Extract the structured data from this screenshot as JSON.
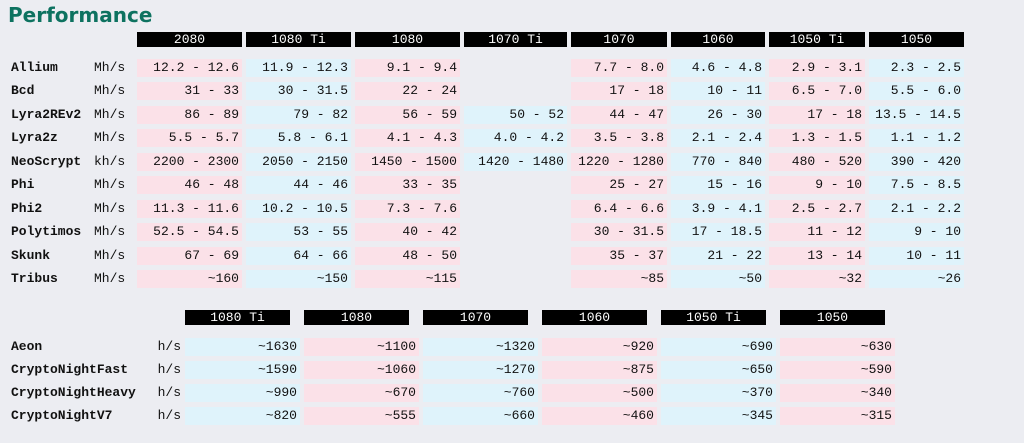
{
  "title": "Performance",
  "colors": {
    "title": "#0d7260",
    "pink": "#fbe1e8",
    "blue": "#dff3fb",
    "header_bg": "#000000"
  },
  "top_table": {
    "columns": [
      "2080",
      "1080 Ti",
      "1080",
      "1070 Ti",
      "1070",
      "1060",
      "1050 Ti",
      "1050"
    ],
    "rows": [
      {
        "algo": "Allium",
        "unit": "Mh/s",
        "values": [
          "12.2 - 12.6",
          "11.9 - 12.3",
          "9.1 - 9.4",
          "",
          "7.7 - 8.0",
          "4.6 - 4.8",
          "2.9 - 3.1",
          "2.3 - 2.5"
        ]
      },
      {
        "algo": "Bcd",
        "unit": "Mh/s",
        "values": [
          "31 - 33",
          "30 - 31.5",
          "22 - 24",
          "",
          "17 - 18",
          "10 - 11",
          "6.5 - 7.0",
          "5.5 - 6.0"
        ]
      },
      {
        "algo": "Lyra2REv2",
        "unit": "Mh/s",
        "values": [
          "86 - 89",
          "79 - 82",
          "56 - 59",
          "50 - 52",
          "44 - 47",
          "26 - 30",
          "17 - 18",
          "13.5 - 14.5"
        ]
      },
      {
        "algo": "Lyra2z",
        "unit": "Mh/s",
        "values": [
          "5.5 - 5.7",
          "5.8 - 6.1",
          "4.1 - 4.3",
          "4.0 - 4.2",
          "3.5 - 3.8",
          "2.1 - 2.4",
          "1.3 - 1.5",
          "1.1 - 1.2"
        ]
      },
      {
        "algo": "NeoScrypt",
        "unit": "kh/s",
        "values": [
          "2200 - 2300",
          "2050 - 2150",
          "1450 - 1500",
          "1420 - 1480",
          "1220 - 1280",
          "770 - 840",
          "480 - 520",
          "390 - 420"
        ]
      },
      {
        "algo": "Phi",
        "unit": "Mh/s",
        "values": [
          "46 - 48",
          "44 - 46",
          "33 - 35",
          "",
          "25 - 27",
          "15 - 16",
          "9 - 10",
          "7.5 - 8.5"
        ]
      },
      {
        "algo": "Phi2",
        "unit": "Mh/s",
        "values": [
          "11.3 - 11.6",
          "10.2 - 10.5",
          "7.3 - 7.6",
          "",
          "6.4 - 6.6",
          "3.9 - 4.1",
          "2.5 - 2.7",
          "2.1 - 2.2"
        ]
      },
      {
        "algo": "Polytimos",
        "unit": "Mh/s",
        "values": [
          "52.5 - 54.5",
          "53 - 55",
          "40 - 42",
          "",
          "30 - 31.5",
          "17 - 18.5",
          "11 - 12",
          "9 - 10"
        ]
      },
      {
        "algo": "Skunk",
        "unit": "Mh/s",
        "values": [
          "67 - 69",
          "64 - 66",
          "48 - 50",
          "",
          "35 - 37",
          "21 - 22",
          "13 - 14",
          "10 - 11"
        ]
      },
      {
        "algo": "Tribus",
        "unit": "Mh/s",
        "values": [
          "~160",
          "~150",
          "~115",
          "",
          "~85",
          "~50",
          "~32",
          "~26"
        ]
      }
    ]
  },
  "bottom_table": {
    "columns": [
      "1080 Ti",
      "1080",
      "1070",
      "1060",
      "1050 Ti",
      "1050"
    ],
    "rows": [
      {
        "algo": "Aeon",
        "unit": "h/s",
        "values": [
          "~1630",
          "~1100",
          "~1320",
          "~920",
          "~690",
          "~630"
        ]
      },
      {
        "algo": "CryptoNightFast",
        "unit": "h/s",
        "values": [
          "~1590",
          "~1060",
          "~1270",
          "~875",
          "~650",
          "~590"
        ]
      },
      {
        "algo": "CryptoNightHeavy",
        "unit": "h/s",
        "values": [
          "~990",
          "~670",
          "~760",
          "~500",
          "~370",
          "~340"
        ]
      },
      {
        "algo": "CryptoNightV7",
        "unit": "h/s",
        "values": [
          "~820",
          "~555",
          "~660",
          "~460",
          "~345",
          "~315"
        ]
      }
    ]
  }
}
